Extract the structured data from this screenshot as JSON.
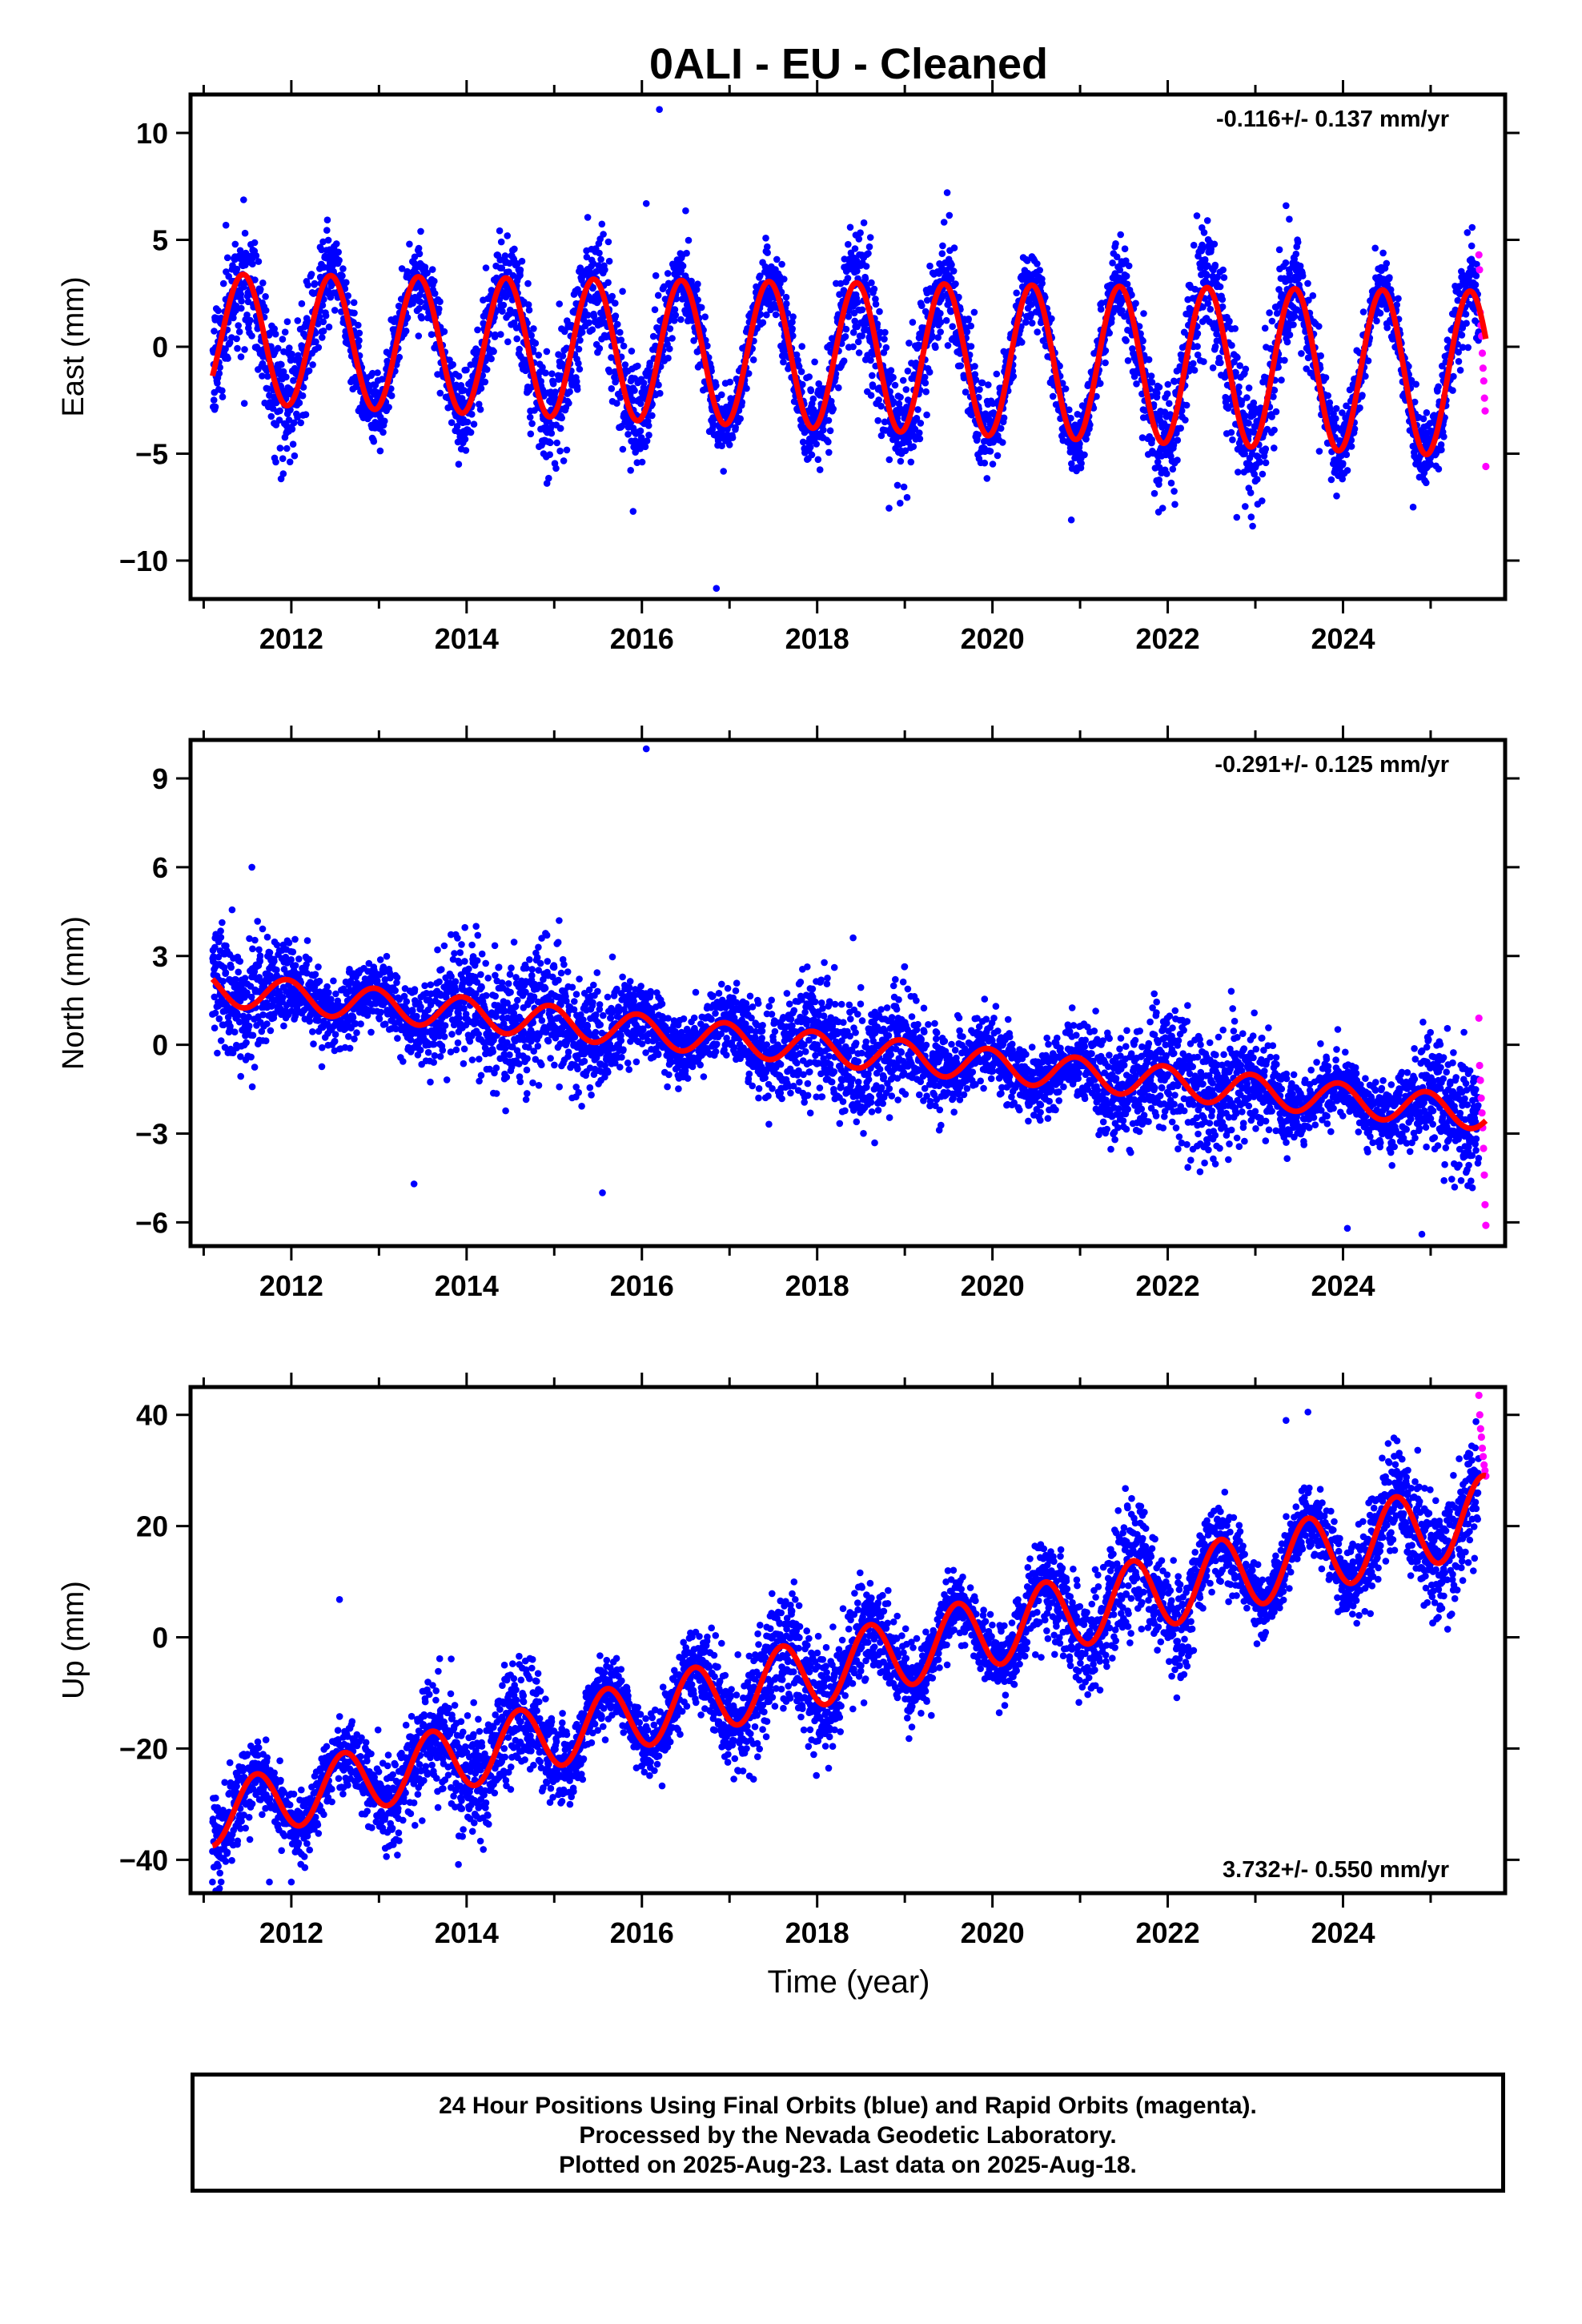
{
  "figure": {
    "title": "0ALI  - EU - Cleaned",
    "xlabel": "Time (year)",
    "footer": [
      "24 Hour Positions Using Final Orbits (blue) and Rapid Orbits (magenta).",
      "Processed by the Nevada Geodetic Laboratory.",
      "Plotted on 2025-Aug-23. Last data on 2025-Aug-18."
    ],
    "colors": {
      "final": "#0000ff",
      "rapid": "#ff00ff",
      "model": "#ff0000"
    }
  },
  "chart_data": [
    {
      "type": "scatter",
      "ylabel": "East (mm)",
      "rate": "-0.116+/- 0.137 mm/yr",
      "rate_position": "top-right",
      "xlim": [
        2010.85,
        2025.85
      ],
      "ylim": [
        -11.8,
        11.8
      ],
      "xticks": [
        2012,
        2014,
        2016,
        2018,
        2020,
        2022,
        2024
      ],
      "yticks": [
        -10,
        -5,
        0,
        5,
        10
      ],
      "ytick_labels": [
        "−10",
        "−5",
        "0",
        "5",
        "10"
      ],
      "time_range": [
        2011.1,
        2025.55
      ],
      "rapid_time_range": [
        2025.55,
        2025.63
      ],
      "model": {
        "offset": 0.4,
        "trend": -0.116,
        "amplitude": 3.0,
        "amplitude_trend": 0.06,
        "phase_peak": 0.45,
        "noise": 1.3
      },
      "rapid_values": [
        4.3,
        3.6,
        1.6,
        1.0,
        0.5,
        -0.3,
        -1.0,
        -1.6,
        -2.4,
        -3.0,
        -5.6
      ],
      "outliers": [
        [
          2016.2,
          11.1
        ],
        [
          2016.85,
          -11.3
        ],
        [
          2016.05,
          6.7
        ],
        [
          2015.9,
          -7.7
        ],
        [
          2020.9,
          -8.1
        ],
        [
          2023.35,
          6.6
        ],
        [
          2024.8,
          -7.5
        ]
      ]
    },
    {
      "type": "scatter",
      "ylabel": "North (mm)",
      "rate": "-0.291+/- 0.125 mm/yr",
      "rate_position": "top-right",
      "xlim": [
        2010.85,
        2025.85
      ],
      "ylim": [
        -6.8,
        10.3
      ],
      "xticks": [
        2012,
        2014,
        2016,
        2018,
        2020,
        2022,
        2024
      ],
      "yticks": [
        -6,
        -3,
        0,
        3,
        6,
        9
      ],
      "ytick_labels": [
        "−6",
        "−3",
        "0",
        "3",
        "6",
        "9"
      ],
      "time_range": [
        2011.1,
        2025.55
      ],
      "rapid_time_range": [
        2025.55,
        2025.63
      ],
      "model": {
        "offset": 1.9,
        "trend": -0.291,
        "amplitude": 0.55,
        "amplitude_trend": 0.0,
        "phase_peak": 0.95,
        "noise": 0.95
      },
      "rapid_values": [
        0.9,
        -0.7,
        -1.2,
        -1.8,
        -2.3,
        -2.8,
        -3.5,
        -4.4,
        -5.4,
        -6.1
      ],
      "outliers": [
        [
          2016.05,
          10.0
        ],
        [
          2013.4,
          -4.7
        ],
        [
          2015.55,
          -5.0
        ],
        [
          2024.05,
          -6.2
        ],
        [
          2024.9,
          -6.4
        ],
        [
          2011.55,
          6.0
        ]
      ]
    },
    {
      "type": "scatter",
      "ylabel": "Up (mm)",
      "rate": "3.732+/- 0.550 mm/yr",
      "rate_position": "bottom-right",
      "xlim": [
        2010.85,
        2025.85
      ],
      "ylim": [
        -46,
        45
      ],
      "xticks": [
        2012,
        2014,
        2016,
        2018,
        2020,
        2022,
        2024
      ],
      "yticks": [
        -40,
        -20,
        0,
        20,
        40
      ],
      "ytick_labels": [
        "−40",
        "−20",
        "0",
        "20",
        "40"
      ],
      "time_range": [
        2011.1,
        2025.55
      ],
      "rapid_time_range": [
        2025.55,
        2025.63
      ],
      "model": {
        "offset": -32,
        "trend": 3.732,
        "amplitude": 5.5,
        "amplitude_trend": 0.1,
        "phase_peak": 0.6,
        "noise": 4.8
      },
      "rapid_values": [
        43.5,
        40.0,
        37.5,
        36.0,
        34.0,
        32.5,
        31.0,
        30.0,
        29.0
      ],
      "outliers": [
        [
          2011.1,
          -44
        ],
        [
          2012.0,
          -44
        ],
        [
          2011.75,
          -44
        ],
        [
          2012.55,
          6.8
        ],
        [
          2023.6,
          40.5
        ],
        [
          2023.35,
          39
        ]
      ]
    }
  ]
}
